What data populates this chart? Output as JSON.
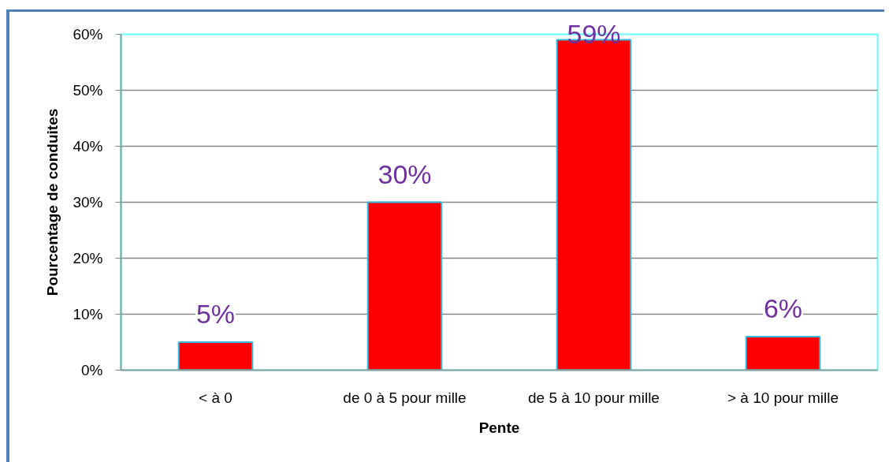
{
  "chart_data": {
    "type": "bar",
    "xlabel": "Pente",
    "ylabel": "Pourcentage de conduites",
    "categories": [
      "< à 0",
      "de 0 à 5 pour mille",
      "de 5 à 10 pour mille",
      "> à 10 pour mille"
    ],
    "values": [
      5,
      30,
      59,
      6
    ],
    "value_labels": [
      "5%",
      "30%",
      "59%",
      "6%"
    ],
    "color": "#ff0000",
    "ylim": [
      0,
      60
    ],
    "yticks": [
      {
        "value": 0,
        "label": "0%"
      },
      {
        "value": 10,
        "label": "10%"
      },
      {
        "value": 20,
        "label": "20%"
      },
      {
        "value": 30,
        "label": "30%"
      },
      {
        "value": 40,
        "label": "40%"
      },
      {
        "value": 50,
        "label": "50%"
      },
      {
        "value": 60,
        "label": "60%"
      }
    ],
    "grid": "y"
  }
}
